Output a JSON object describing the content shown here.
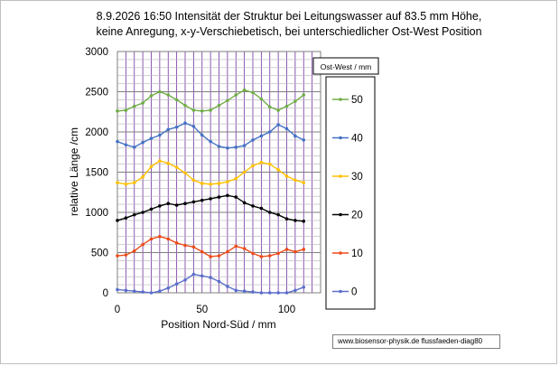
{
  "title_lines": [
    "8.9.2026 16:50 Intensität der Struktur bei Leitungswasser auf 83.5 mm Höhe,",
    "keine Anregung, x-y-Verschiebetisch, bei unterschiedlicher Ost-West Position"
  ],
  "footer": "www.biosensor-physik.de  flussfaeden-diag80",
  "chart_data": {
    "type": "line",
    "title": "8.9.2026 16:50 Intensität der Struktur bei Leitungswasser auf 83.5 mm Höhe, keine Anregung, x-y-Verschiebetisch, bei unterschiedlicher Ost-West Position",
    "xlabel": "Position Nord-Süd / mm",
    "ylabel": "relative Länge /cm",
    "xlim": [
      0,
      120
    ],
    "ylim": [
      0,
      3000
    ],
    "xticks": [
      "0",
      "50",
      "100"
    ],
    "yticks": [
      "0",
      "500",
      "1000",
      "1500",
      "2000",
      "2500",
      "3000"
    ],
    "grid": true,
    "legend_title": "Ost-West / mm",
    "legend_position": "right",
    "x": [
      0,
      5,
      10,
      15,
      20,
      25,
      30,
      35,
      40,
      45,
      50,
      55,
      60,
      65,
      70,
      75,
      80,
      85,
      90,
      95,
      100,
      105,
      110
    ],
    "series": [
      {
        "name": "50",
        "color": "#70ad47",
        "values": [
          2260,
          2270,
          2320,
          2360,
          2450,
          2500,
          2460,
          2400,
          2330,
          2270,
          2260,
          2270,
          2330,
          2390,
          2460,
          2520,
          2490,
          2410,
          2310,
          2270,
          2320,
          2380,
          2460
        ]
      },
      {
        "name": "40",
        "color": "#4472c4",
        "values": [
          1880,
          1840,
          1810,
          1870,
          1920,
          1960,
          2030,
          2060,
          2110,
          2070,
          1960,
          1880,
          1820,
          1800,
          1810,
          1830,
          1900,
          1950,
          2000,
          2090,
          2040,
          1950,
          1900
        ]
      },
      {
        "name": "30",
        "color": "#ffc000",
        "values": [
          1370,
          1350,
          1370,
          1440,
          1570,
          1640,
          1610,
          1560,
          1490,
          1400,
          1360,
          1350,
          1360,
          1380,
          1420,
          1500,
          1580,
          1620,
          1600,
          1530,
          1450,
          1400,
          1370
        ]
      },
      {
        "name": "20",
        "color": "#000000",
        "values": [
          900,
          930,
          970,
          1000,
          1040,
          1080,
          1110,
          1090,
          1110,
          1130,
          1150,
          1170,
          1190,
          1210,
          1190,
          1120,
          1080,
          1050,
          1000,
          970,
          920,
          900,
          890
        ]
      },
      {
        "name": "10",
        "color": "#ed4c1a",
        "values": [
          460,
          470,
          520,
          600,
          670,
          700,
          670,
          620,
          590,
          570,
          510,
          450,
          460,
          510,
          580,
          550,
          490,
          450,
          460,
          490,
          540,
          510,
          540
        ]
      },
      {
        "name": "0",
        "color": "#5a6fcb",
        "values": [
          40,
          30,
          20,
          10,
          0,
          20,
          60,
          110,
          160,
          230,
          210,
          190,
          140,
          80,
          30,
          20,
          10,
          0,
          0,
          0,
          0,
          30,
          70
        ]
      }
    ]
  }
}
